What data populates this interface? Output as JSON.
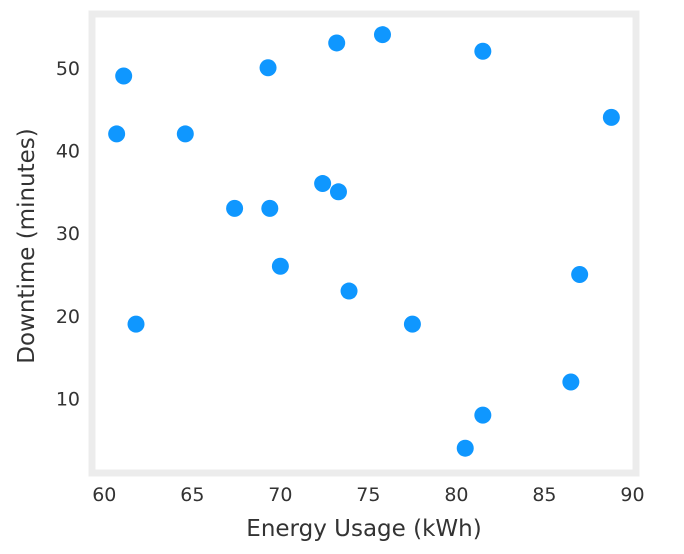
{
  "chart_data": {
    "type": "scatter",
    "title": "",
    "xlabel": "Energy Usage (kWh)",
    "ylabel": "Downtime (minutes)",
    "xlim": [
      59.3,
      90.2
    ],
    "ylim": [
      1,
      56.5
    ],
    "xticks": [
      60,
      65,
      70,
      75,
      80,
      85,
      90
    ],
    "yticks": [
      10,
      20,
      30,
      40,
      50
    ],
    "grid": false,
    "marker_color": "#0f97ff",
    "frame_color": "#ececec",
    "points": [
      {
        "x": 60.7,
        "y": 42
      },
      {
        "x": 61.1,
        "y": 49
      },
      {
        "x": 61.8,
        "y": 19
      },
      {
        "x": 64.6,
        "y": 42
      },
      {
        "x": 67.4,
        "y": 33
      },
      {
        "x": 69.3,
        "y": 50
      },
      {
        "x": 69.4,
        "y": 33
      },
      {
        "x": 70.0,
        "y": 26
      },
      {
        "x": 72.4,
        "y": 36
      },
      {
        "x": 73.2,
        "y": 53
      },
      {
        "x": 73.3,
        "y": 35
      },
      {
        "x": 73.9,
        "y": 23
      },
      {
        "x": 75.8,
        "y": 54
      },
      {
        "x": 77.5,
        "y": 19
      },
      {
        "x": 80.5,
        "y": 4
      },
      {
        "x": 81.5,
        "y": 52
      },
      {
        "x": 81.5,
        "y": 8
      },
      {
        "x": 86.5,
        "y": 12
      },
      {
        "x": 87.0,
        "y": 25
      },
      {
        "x": 88.8,
        "y": 44
      }
    ]
  }
}
